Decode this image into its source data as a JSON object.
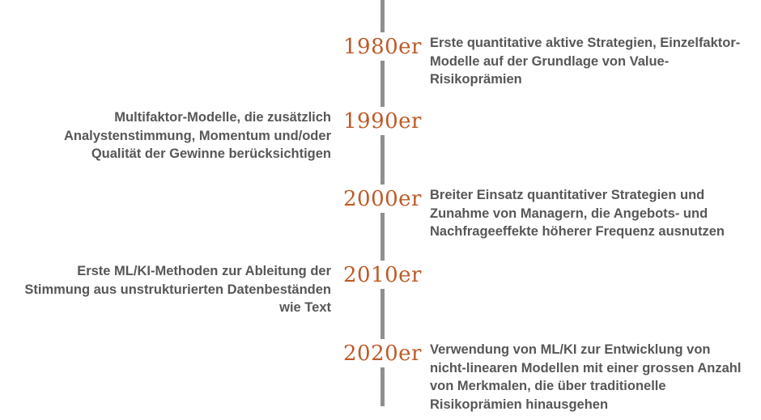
{
  "theme": {
    "line": "#8f8f8f",
    "year": "#bf5a28",
    "text": "#575757",
    "background": "#ffffff",
    "box": "#ffffff"
  },
  "timeline": {
    "items": [
      {
        "year": "1980er",
        "side": "right",
        "text": "Erste quantitative aktive Strategien, Einzelfaktor-Modelle auf der Grundlage von Value-Risikoprämien"
      },
      {
        "year": "1990er",
        "side": "left",
        "text": "Multifaktor-Modelle, die zusätzlich Analystenstimmung, Momentum und/oder Qualität der Gewinne berücksichtigen"
      },
      {
        "year": "2000er",
        "side": "right",
        "text": "Breiter Einsatz quantitativer Strategien und Zunahme von Managern, die Angebots- und Nachfrageeffekte höherer Frequenz ausnutzen"
      },
      {
        "year": "2010er",
        "side": "left",
        "text": "Erste ML/KI-Methoden zur Ableitung der Stimmung aus unstrukturierten Datenbeständen wie Text"
      },
      {
        "year": "2020er",
        "side": "right",
        "text": "Verwendung von ML/KI zur Entwicklung von nicht-linearen Modellen mit einer grossen Anzahl von Merkmalen, die über traditionelle Risikoprämien hinausgehen"
      }
    ]
  }
}
